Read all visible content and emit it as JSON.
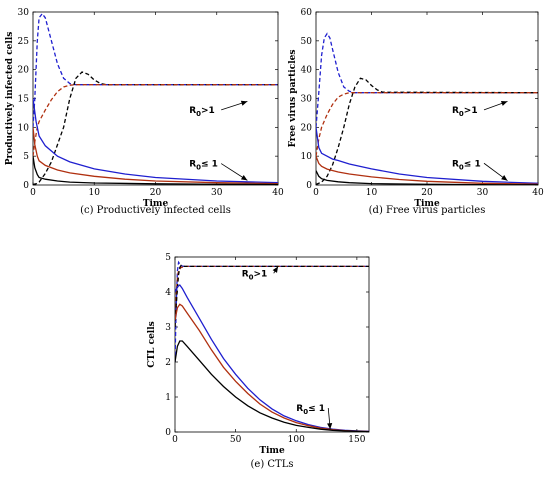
{
  "chart_data": [
    {
      "type": "line",
      "caption": "(c) Productively infected cells",
      "xlabel": "Time",
      "ylabel": "Productively infected cells",
      "xlim": [
        0,
        40
      ],
      "ylim": [
        0,
        30
      ],
      "xticks": [
        0,
        10,
        20,
        30,
        40
      ],
      "yticks": [
        0,
        5,
        10,
        15,
        20,
        25,
        30
      ],
      "annotations": [
        {
          "text": "R0>1",
          "label_x": 25.5,
          "label_y": 12.5,
          "arrow_to": [
            35,
            14.5
          ]
        },
        {
          "text": "R0≤ 1",
          "label_x": 25.5,
          "label_y": 3.2,
          "arrow_to": [
            35,
            0.8
          ]
        }
      ],
      "series": [
        {
          "color": "#1f1fcf",
          "dashed": true,
          "points": [
            [
              0,
              10
            ],
            [
              0.3,
              15
            ],
            [
              0.7,
              25
            ],
            [
              1,
              29
            ],
            [
              1.5,
              29.7
            ],
            [
              2,
              29
            ],
            [
              3,
              25
            ],
            [
              4,
              21
            ],
            [
              5,
              18.5
            ],
            [
              6,
              17.6
            ],
            [
              7,
              17.4
            ],
            [
              40,
              17.4
            ]
          ]
        },
        {
          "color": "#000000",
          "dashed": true,
          "points": [
            [
              0,
              0.1
            ],
            [
              0.5,
              0.2
            ],
            [
              1,
              0.5
            ],
            [
              2,
              2
            ],
            [
              3,
              4
            ],
            [
              4,
              7
            ],
            [
              5,
              10
            ],
            [
              6,
              15
            ],
            [
              7,
              18.5
            ],
            [
              8,
              19.6
            ],
            [
              9,
              19.2
            ],
            [
              10,
              18.2
            ],
            [
              11,
              17.6
            ],
            [
              12,
              17.4
            ],
            [
              40,
              17.4
            ]
          ]
        },
        {
          "color": "#b03010",
          "dashed": true,
          "points": [
            [
              0,
              5
            ],
            [
              0.3,
              7.5
            ],
            [
              0.7,
              10
            ],
            [
              1,
              11
            ],
            [
              2,
              13
            ],
            [
              3,
              14.8
            ],
            [
              4,
              16.2
            ],
            [
              5,
              17
            ],
            [
              6,
              17.3
            ],
            [
              7,
              17.4
            ],
            [
              40,
              17.4
            ]
          ]
        },
        {
          "color": "#1f1fcf",
          "dashed": false,
          "points": [
            [
              0,
              15
            ],
            [
              0.5,
              11
            ],
            [
              1,
              8.5
            ],
            [
              2,
              6.8
            ],
            [
              4,
              5
            ],
            [
              6,
              4
            ],
            [
              10,
              2.8
            ],
            [
              15,
              1.9
            ],
            [
              20,
              1.3
            ],
            [
              30,
              0.7
            ],
            [
              40,
              0.4
            ]
          ]
        },
        {
          "color": "#b03010",
          "dashed": false,
          "points": [
            [
              0,
              10
            ],
            [
              0.3,
              7
            ],
            [
              0.7,
              5
            ],
            [
              1,
              4.2
            ],
            [
              2,
              3.4
            ],
            [
              4,
              2.6
            ],
            [
              6,
              2.1
            ],
            [
              10,
              1.5
            ],
            [
              15,
              1
            ],
            [
              20,
              0.7
            ],
            [
              30,
              0.4
            ],
            [
              40,
              0.25
            ]
          ]
        },
        {
          "color": "#000000",
          "dashed": false,
          "points": [
            [
              0,
              5
            ],
            [
              0.3,
              3
            ],
            [
              0.7,
              1.8
            ],
            [
              1,
              1.3
            ],
            [
              2,
              1
            ],
            [
              4,
              0.7
            ],
            [
              6,
              0.5
            ],
            [
              10,
              0.35
            ],
            [
              20,
              0.2
            ],
            [
              30,
              0.12
            ],
            [
              40,
              0.08
            ]
          ]
        }
      ]
    },
    {
      "type": "line",
      "caption": "(d) Free virus particles",
      "xlabel": "Time",
      "ylabel": "Free virus particles",
      "xlim": [
        0,
        40
      ],
      "ylim": [
        0,
        60
      ],
      "xticks": [
        0,
        10,
        20,
        30,
        40
      ],
      "yticks": [
        0,
        10,
        20,
        30,
        40,
        50,
        60
      ],
      "annotations": [
        {
          "text": "R0>1",
          "label_x": 24.5,
          "label_y": 25,
          "arrow_to": [
            34.5,
            29
          ]
        },
        {
          "text": "R0≤ 1",
          "label_x": 24.5,
          "label_y": 6.5,
          "arrow_to": [
            34.5,
            1.5
          ]
        }
      ],
      "series": [
        {
          "color": "#1f1fcf",
          "dashed": true,
          "points": [
            [
              0,
              20
            ],
            [
              0.5,
              32
            ],
            [
              1,
              45
            ],
            [
              1.5,
              51
            ],
            [
              2,
              52.5
            ],
            [
              2.5,
              51
            ],
            [
              3,
              47
            ],
            [
              4,
              39
            ],
            [
              5,
              34
            ],
            [
              6,
              32.5
            ],
            [
              7,
              32
            ],
            [
              40,
              32
            ]
          ]
        },
        {
          "color": "#000000",
          "dashed": true,
          "points": [
            [
              0,
              0.2
            ],
            [
              1,
              1
            ],
            [
              2,
              3
            ],
            [
              3,
              7
            ],
            [
              4,
              13
            ],
            [
              5,
              20
            ],
            [
              6,
              28
            ],
            [
              7,
              34
            ],
            [
              8,
              37
            ],
            [
              9,
              36.5
            ],
            [
              10,
              34.5
            ],
            [
              11,
              33
            ],
            [
              12,
              32.2
            ],
            [
              40,
              32
            ]
          ]
        },
        {
          "color": "#b03010",
          "dashed": true,
          "points": [
            [
              0,
              10
            ],
            [
              0.5,
              16
            ],
            [
              1,
              20
            ],
            [
              2,
              24.5
            ],
            [
              3,
              28
            ],
            [
              4,
              30.5
            ],
            [
              5,
              31.5
            ],
            [
              6,
              32
            ],
            [
              40,
              32
            ]
          ]
        },
        {
          "color": "#1f1fcf",
          "dashed": false,
          "points": [
            [
              0,
              20
            ],
            [
              0.5,
              13
            ],
            [
              1,
              11
            ],
            [
              2,
              10
            ],
            [
              3,
              9
            ],
            [
              4,
              8.5
            ],
            [
              6,
              7.3
            ],
            [
              10,
              5.6
            ],
            [
              15,
              3.8
            ],
            [
              20,
              2.6
            ],
            [
              30,
              1.3
            ],
            [
              40,
              0.6
            ]
          ]
        },
        {
          "color": "#b03010",
          "dashed": false,
          "points": [
            [
              0,
              10
            ],
            [
              0.5,
              7.5
            ],
            [
              1,
              6.5
            ],
            [
              2,
              5.5
            ],
            [
              4,
              4.5
            ],
            [
              6,
              3.8
            ],
            [
              10,
              2.8
            ],
            [
              15,
              1.9
            ],
            [
              20,
              1.3
            ],
            [
              30,
              0.6
            ],
            [
              40,
              0.3
            ]
          ]
        },
        {
          "color": "#000000",
          "dashed": false,
          "points": [
            [
              0,
              5
            ],
            [
              0.5,
              3
            ],
            [
              1,
              2.2
            ],
            [
              2,
              1.6
            ],
            [
              4,
              1.1
            ],
            [
              6,
              0.8
            ],
            [
              10,
              0.5
            ],
            [
              20,
              0.25
            ],
            [
              30,
              0.12
            ],
            [
              40,
              0.06
            ]
          ]
        }
      ]
    },
    {
      "type": "line",
      "caption": "(e) CTLs",
      "xlabel": "Time",
      "ylabel": "CTL cells",
      "xlim": [
        0,
        160
      ],
      "ylim": [
        0,
        5
      ],
      "xticks": [
        0,
        50,
        100,
        150
      ],
      "yticks": [
        0,
        1,
        2,
        3,
        4,
        5
      ],
      "annotations": [
        {
          "text": "R0>1",
          "label_x": 55,
          "label_y": 4.45,
          "arrow_to": [
            85,
            4.73
          ]
        },
        {
          "text": "R0≤ 1",
          "label_x": 100,
          "label_y": 0.6,
          "arrow_to": [
            128,
            0.08
          ]
        }
      ],
      "series": [
        {
          "color": "#1f1fcf",
          "dashed": true,
          "points": [
            [
              0,
              2
            ],
            [
              1,
              3.6
            ],
            [
              2,
              4.6
            ],
            [
              3,
              4.85
            ],
            [
              4,
              4.8
            ],
            [
              6,
              4.74
            ],
            [
              8,
              4.73
            ],
            [
              160,
              4.73
            ]
          ]
        },
        {
          "color": "#b03010",
          "dashed": true,
          "points": [
            [
              0,
              3
            ],
            [
              1,
              3.9
            ],
            [
              2,
              4.4
            ],
            [
              3,
              4.62
            ],
            [
              5,
              4.7
            ],
            [
              8,
              4.73
            ],
            [
              160,
              4.73
            ]
          ]
        },
        {
          "color": "#000000",
          "dashed": true,
          "points": [
            [
              0,
              3
            ],
            [
              1,
              3.6
            ],
            [
              2,
              4.1
            ],
            [
              3,
              4.5
            ],
            [
              4,
              4.7
            ],
            [
              5,
              4.76
            ],
            [
              6,
              4.74
            ],
            [
              8,
              4.73
            ],
            [
              160,
              4.73
            ]
          ]
        },
        {
          "color": "#1f1fcf",
          "dashed": false,
          "points": [
            [
              0,
              4
            ],
            [
              2,
              4.15
            ],
            [
              4,
              4.2
            ],
            [
              6,
              4.1
            ],
            [
              10,
              3.85
            ],
            [
              20,
              3.25
            ],
            [
              30,
              2.65
            ],
            [
              40,
              2.1
            ],
            [
              50,
              1.65
            ],
            [
              60,
              1.25
            ],
            [
              70,
              0.92
            ],
            [
              80,
              0.66
            ],
            [
              90,
              0.46
            ],
            [
              100,
              0.32
            ],
            [
              110,
              0.21
            ],
            [
              120,
              0.13
            ],
            [
              130,
              0.08
            ],
            [
              140,
              0.05
            ],
            [
              150,
              0.03
            ],
            [
              160,
              0.02
            ]
          ]
        },
        {
          "color": "#b03010",
          "dashed": false,
          "points": [
            [
              0,
              3.2
            ],
            [
              2,
              3.55
            ],
            [
              4,
              3.65
            ],
            [
              6,
              3.6
            ],
            [
              10,
              3.4
            ],
            [
              20,
              2.9
            ],
            [
              30,
              2.35
            ],
            [
              40,
              1.85
            ],
            [
              50,
              1.45
            ],
            [
              60,
              1.1
            ],
            [
              70,
              0.8
            ],
            [
              80,
              0.57
            ],
            [
              90,
              0.4
            ],
            [
              100,
              0.27
            ],
            [
              110,
              0.18
            ],
            [
              120,
              0.11
            ],
            [
              130,
              0.07
            ],
            [
              140,
              0.04
            ],
            [
              150,
              0.025
            ],
            [
              160,
              0.015
            ]
          ]
        },
        {
          "color": "#000000",
          "dashed": false,
          "points": [
            [
              0,
              2
            ],
            [
              2,
              2.45
            ],
            [
              4,
              2.6
            ],
            [
              6,
              2.6
            ],
            [
              10,
              2.45
            ],
            [
              20,
              2.05
            ],
            [
              30,
              1.65
            ],
            [
              40,
              1.3
            ],
            [
              50,
              1
            ],
            [
              60,
              0.75
            ],
            [
              70,
              0.55
            ],
            [
              80,
              0.4
            ],
            [
              90,
              0.28
            ],
            [
              100,
              0.19
            ],
            [
              110,
              0.13
            ],
            [
              120,
              0.08
            ],
            [
              130,
              0.05
            ],
            [
              140,
              0.03
            ],
            [
              150,
              0.02
            ],
            [
              160,
              0.01
            ]
          ]
        }
      ]
    }
  ]
}
